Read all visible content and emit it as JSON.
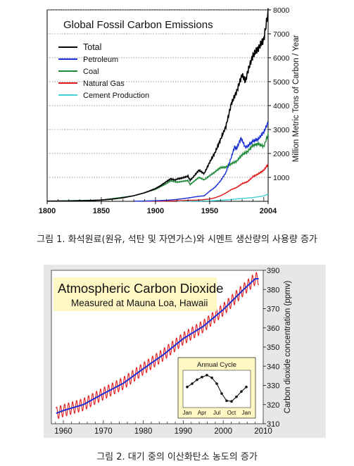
{
  "captions": {
    "fig1": "그림 1. 화석원료(원유, 석탄 및 자연가스)와 시멘트 생산량의 사용량 증가",
    "fig2": "그림 2. 대기 중의 이산화탄소 농도의 증가"
  },
  "chart_data": [
    {
      "type": "line",
      "title": "Global Fossil Carbon Emissions",
      "xlabel": "",
      "ylabel": "Million Metric Tons of Carbon / Year",
      "xlim": [
        1800,
        2004
      ],
      "ylim": [
        0,
        8000
      ],
      "x_ticks": [
        1800,
        1850,
        1900,
        1950,
        2004
      ],
      "y_ticks": [
        1000,
        2000,
        3000,
        4000,
        5000,
        6000,
        7000,
        8000
      ],
      "grid": "dotted horizontal",
      "legend": "top-left",
      "series": [
        {
          "name": "Total",
          "color": "#000000",
          "x": [
            1800,
            1820,
            1840,
            1850,
            1860,
            1870,
            1880,
            1890,
            1900,
            1905,
            1910,
            1914,
            1918,
            1920,
            1925,
            1930,
            1932,
            1935,
            1940,
            1945,
            1950,
            1955,
            1960,
            1965,
            1970,
            1975,
            1980,
            1983,
            1985,
            1990,
            1995,
            2000,
            2004
          ],
          "y": [
            8,
            14,
            33,
            54,
            91,
            147,
            236,
            356,
            534,
            663,
            819,
            940,
            890,
            932,
            980,
            1053,
            881,
            1020,
            1299,
            1160,
            1630,
            2040,
            2577,
            3130,
            4075,
            4596,
            5300,
            5000,
            5400,
            6100,
            6400,
            6765,
            7910
          ]
        },
        {
          "name": "Petroleum",
          "color": "#1a2fd6",
          "x": [
            1880,
            1900,
            1910,
            1920,
            1930,
            1940,
            1945,
            1950,
            1955,
            1960,
            1965,
            1970,
            1973,
            1975,
            1979,
            1983,
            1985,
            1990,
            1995,
            2000,
            2004
          ],
          "y": [
            3,
            23,
            44,
            79,
            140,
            210,
            230,
            423,
            590,
            850,
            1200,
            1840,
            2270,
            2200,
            2650,
            2250,
            2300,
            2520,
            2600,
            2900,
            3300
          ]
        },
        {
          "name": "Coal",
          "color": "#1f8a3a",
          "x": [
            1800,
            1850,
            1880,
            1900,
            1910,
            1914,
            1920,
            1930,
            1932,
            1940,
            1945,
            1950,
            1955,
            1960,
            1965,
            1970,
            1975,
            1980,
            1985,
            1990,
            1995,
            2000,
            2004
          ],
          "y": [
            8,
            54,
            230,
            500,
            740,
            860,
            800,
            870,
            700,
            1000,
            900,
            1070,
            1230,
            1410,
            1430,
            1570,
            1680,
            1950,
            2080,
            2340,
            2400,
            2290,
            2800
          ]
        },
        {
          "name": "Natural Gas",
          "color": "#e01a1a",
          "x": [
            1890,
            1900,
            1910,
            1920,
            1930,
            1940,
            1950,
            1955,
            1960,
            1965,
            1970,
            1975,
            1980,
            1985,
            1990,
            1995,
            2000,
            2004
          ],
          "y": [
            5,
            8,
            12,
            20,
            40,
            50,
            97,
            150,
            230,
            350,
            490,
            580,
            740,
            820,
            1030,
            1150,
            1300,
            1550
          ]
        },
        {
          "name": "Cement Production",
          "color": "#3fd1d6",
          "x": [
            1920,
            1930,
            1940,
            1950,
            1960,
            1970,
            1980,
            1990,
            2000,
            2004
          ],
          "y": [
            5,
            10,
            14,
            18,
            43,
            78,
            120,
            157,
            226,
            300
          ]
        }
      ]
    },
    {
      "type": "line",
      "title": "Atmospheric Carbon Dioxide",
      "subtitle": "Measured at Mauna Loa, Hawaii",
      "xlabel": "",
      "ylabel": "Carbon dioxide concentration (ppmv)",
      "xlim": [
        1957,
        2010
      ],
      "ylim": [
        310,
        390
      ],
      "x_ticks": [
        1960,
        1970,
        1980,
        1990,
        2000,
        2010
      ],
      "y_ticks": [
        310,
        320,
        330,
        340,
        350,
        360,
        370,
        380,
        390
      ],
      "grid": "none",
      "series": [
        {
          "name": "",
          "color": "#e01a1a",
          "note_style": "monthly seasonal cycle",
          "x": [
            1958,
            1960,
            1965,
            1970,
            1975,
            1980,
            1985,
            1990,
            1995,
            2000,
            2005,
            2008
          ],
          "y": [
            315.3,
            316.9,
            320.0,
            325.7,
            331.1,
            338.7,
            346.0,
            354.4,
            360.8,
            369.5,
            379.8,
            385.6
          ]
        },
        {
          "name": "",
          "color": "#1a2fd6",
          "x": [
            1958,
            1960,
            1965,
            1970,
            1975,
            1980,
            1985,
            1990,
            1995,
            2000,
            2005,
            2008
          ],
          "y": [
            315.3,
            316.9,
            320.0,
            325.7,
            331.1,
            338.7,
            346.0,
            354.4,
            360.8,
            369.5,
            379.8,
            385.6
          ]
        }
      ],
      "inset": {
        "title": "Annual Cycle",
        "x_ticks": [
          "Jan",
          "Apr",
          "Jul",
          "Oct",
          "Jan"
        ],
        "months": [
          1,
          2,
          3,
          4,
          5,
          6,
          7,
          8,
          9,
          10,
          11,
          12,
          13
        ],
        "values": [
          1.0,
          2.0,
          3.2,
          4.0,
          4.6,
          3.8,
          2.0,
          -1.0,
          -3.2,
          -3.4,
          -2.0,
          -0.4,
          1.0
        ]
      }
    }
  ]
}
